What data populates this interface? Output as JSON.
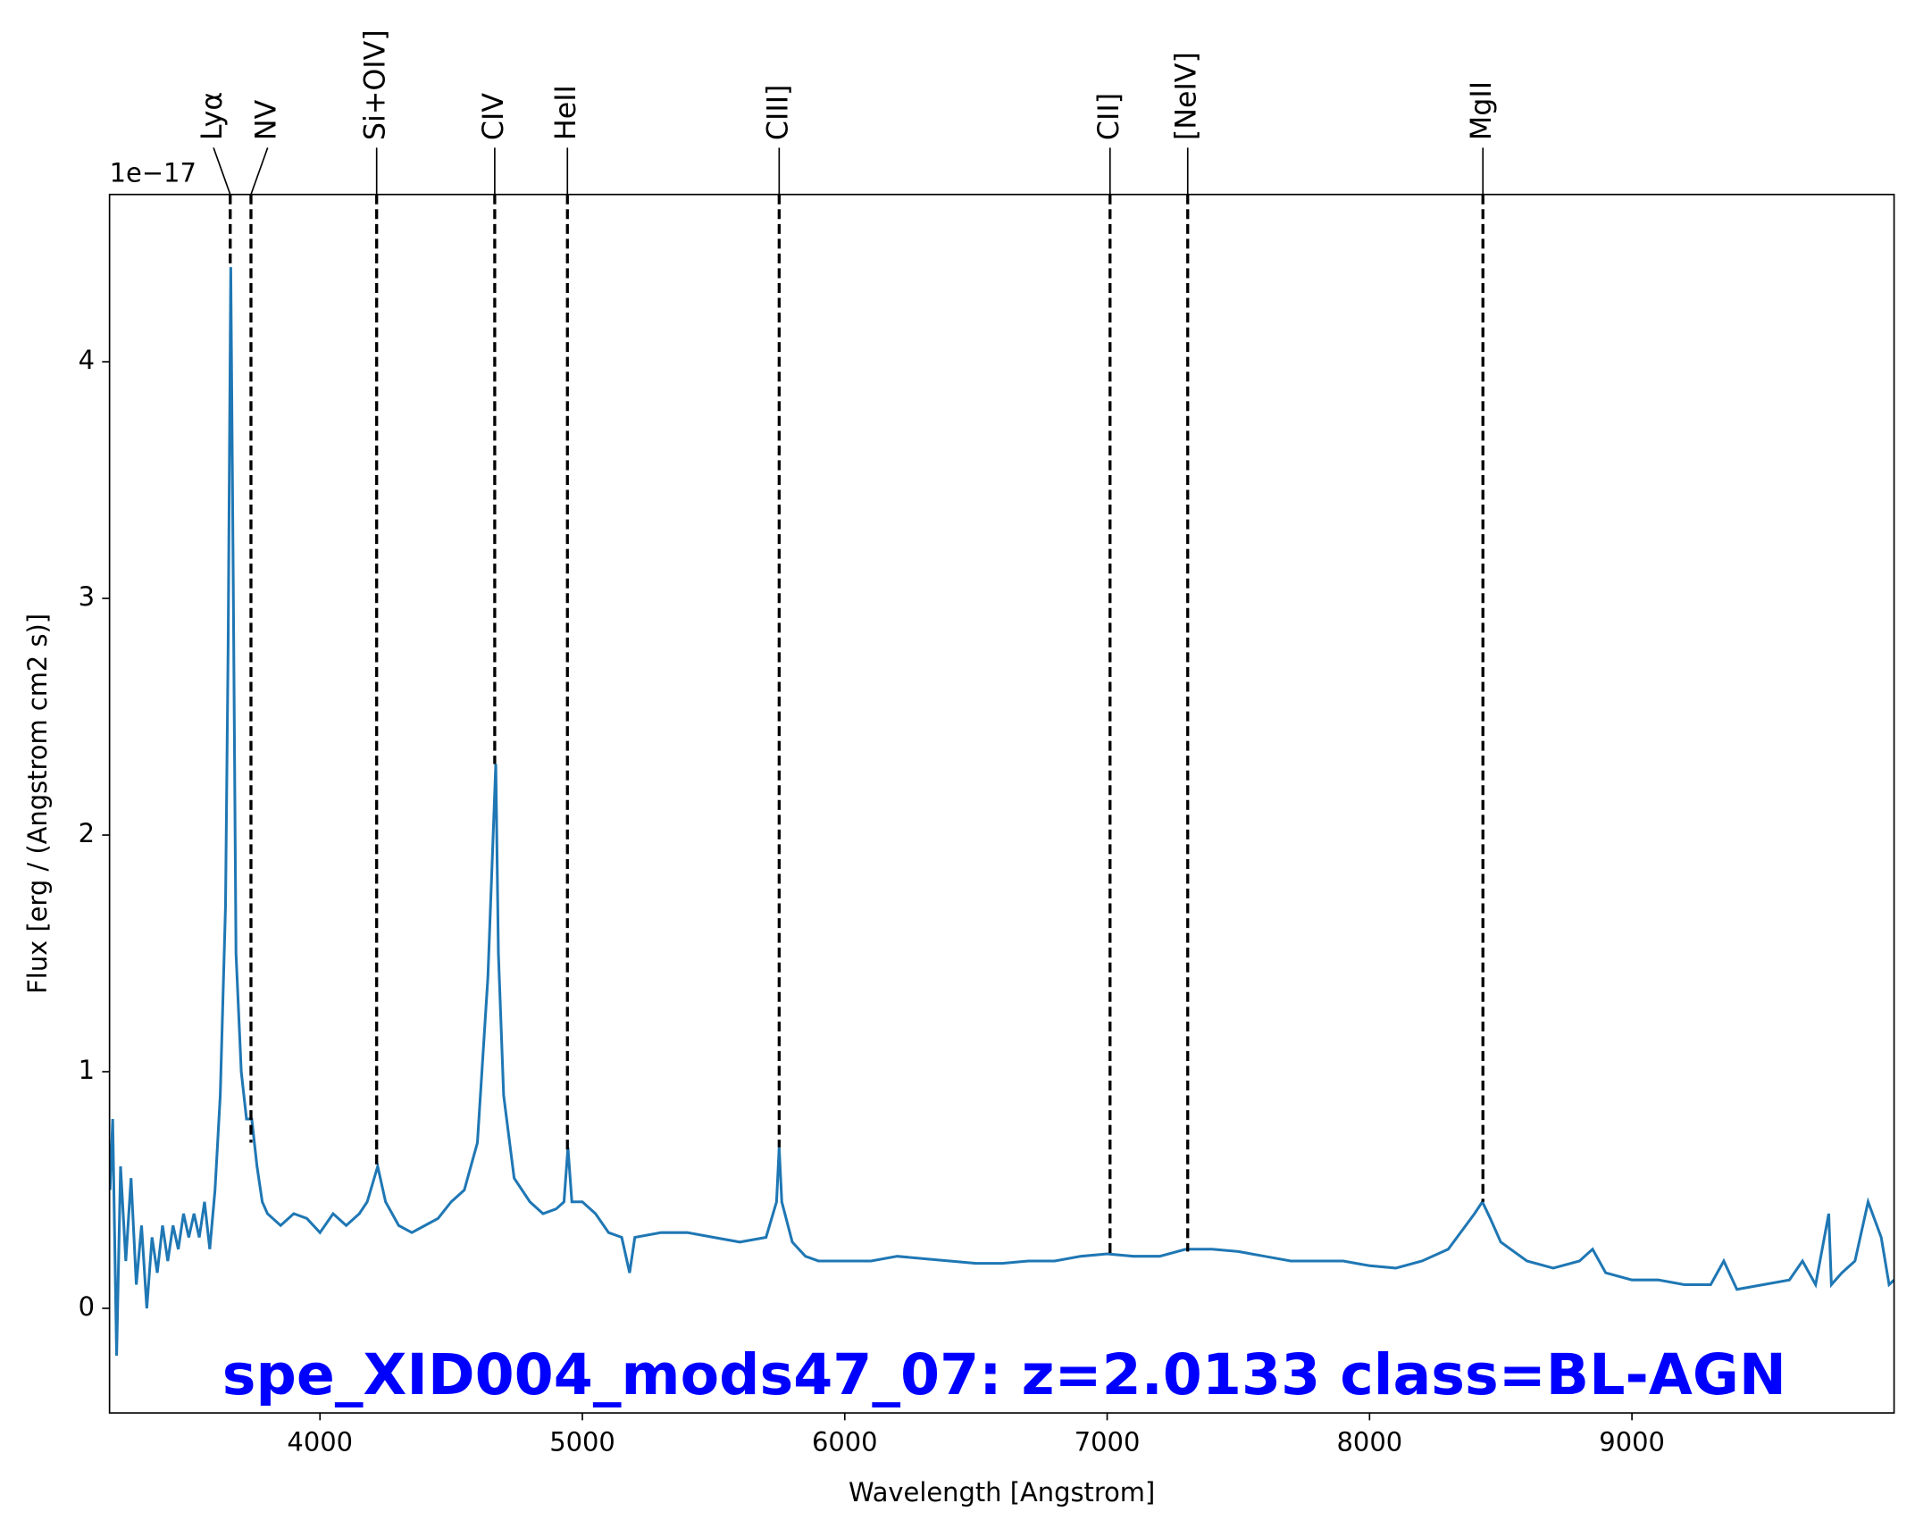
{
  "chart_data": {
    "type": "line",
    "title": "spe_XID004_mods47_07: z=2.0133 class=BL-AGN",
    "title_color": "#0000ff",
    "xlabel": "Wavelength [Angstrom]",
    "ylabel": "Flux [erg / (Angstrom cm2 s)]",
    "offset_label": "1e−17",
    "color": "#1f77b4",
    "xlim": [
      3198,
      9999
    ],
    "ylim": [
      -0.442,
      4.707
    ],
    "xticks": [
      4000,
      5000,
      6000,
      7000,
      8000,
      9000
    ],
    "yticks": [
      0,
      1,
      2,
      3,
      4
    ],
    "x": [
      3200,
      3210,
      3225,
      3240,
      3260,
      3280,
      3300,
      3320,
      3340,
      3360,
      3380,
      3400,
      3420,
      3440,
      3460,
      3480,
      3500,
      3520,
      3540,
      3560,
      3580,
      3600,
      3620,
      3640,
      3650,
      3660,
      3670,
      3680,
      3700,
      3720,
      3740,
      3760,
      3780,
      3800,
      3850,
      3900,
      3950,
      4000,
      4050,
      4100,
      4150,
      4180,
      4220,
      4250,
      4300,
      4350,
      4400,
      4450,
      4500,
      4550,
      4600,
      4640,
      4660,
      4670,
      4680,
      4700,
      4740,
      4800,
      4850,
      4900,
      4930,
      4945,
      4960,
      5000,
      5050,
      5100,
      5150,
      5180,
      5200,
      5300,
      5400,
      5500,
      5600,
      5700,
      5740,
      5750,
      5760,
      5800,
      5850,
      5900,
      6000,
      6100,
      6200,
      6300,
      6400,
      6500,
      6600,
      6700,
      6800,
      6900,
      7000,
      7100,
      7200,
      7300,
      7400,
      7500,
      7600,
      7700,
      7800,
      7900,
      8000,
      8100,
      8200,
      8300,
      8400,
      8430,
      8460,
      8500,
      8600,
      8700,
      8800,
      8850,
      8900,
      9000,
      9100,
      9200,
      9300,
      9350,
      9400,
      9500,
      9600,
      9650,
      9700,
      9750,
      9760,
      9800,
      9850,
      9900,
      9950,
      9980,
      9999
    ],
    "values": [
      0.5,
      0.8,
      -0.2,
      0.6,
      0.2,
      0.55,
      0.1,
      0.35,
      0.0,
      0.3,
      0.15,
      0.35,
      0.2,
      0.35,
      0.25,
      0.4,
      0.3,
      0.4,
      0.3,
      0.45,
      0.25,
      0.5,
      0.9,
      1.7,
      2.8,
      4.4,
      3.0,
      1.5,
      1.0,
      0.8,
      0.8,
      0.6,
      0.45,
      0.4,
      0.35,
      0.4,
      0.38,
      0.32,
      0.4,
      0.35,
      0.4,
      0.45,
      0.6,
      0.45,
      0.35,
      0.32,
      0.35,
      0.38,
      0.45,
      0.5,
      0.7,
      1.4,
      2.0,
      2.3,
      1.5,
      0.9,
      0.55,
      0.45,
      0.4,
      0.42,
      0.45,
      0.68,
      0.45,
      0.45,
      0.4,
      0.32,
      0.3,
      0.15,
      0.3,
      0.32,
      0.32,
      0.3,
      0.28,
      0.3,
      0.45,
      0.68,
      0.45,
      0.28,
      0.22,
      0.2,
      0.2,
      0.2,
      0.22,
      0.21,
      0.2,
      0.19,
      0.19,
      0.2,
      0.2,
      0.22,
      0.23,
      0.22,
      0.22,
      0.25,
      0.25,
      0.24,
      0.22,
      0.2,
      0.2,
      0.2,
      0.18,
      0.17,
      0.2,
      0.25,
      0.4,
      0.45,
      0.38,
      0.28,
      0.2,
      0.17,
      0.2,
      0.25,
      0.15,
      0.12,
      0.12,
      0.1,
      0.1,
      0.2,
      0.08,
      0.1,
      0.12,
      0.2,
      0.1,
      0.4,
      0.1,
      0.15,
      0.2,
      0.45,
      0.3,
      0.1,
      0.12
    ],
    "lines": [
      {
        "label": "Lyα",
        "wavelength": 3658,
        "flux": 4.4
      },
      {
        "label": "NV",
        "wavelength": 3737,
        "flux": 0.7
      },
      {
        "label": "Si+OIV]",
        "wavelength": 4216,
        "flux": 0.6
      },
      {
        "label": "CIV",
        "wavelength": 4666,
        "flux": 2.3
      },
      {
        "label": "HeII",
        "wavelength": 4943,
        "flux": 0.65
      },
      {
        "label": "CIII]",
        "wavelength": 5750,
        "flux": 0.68
      },
      {
        "label": "CII]",
        "wavelength": 7011,
        "flux": 0.22
      },
      {
        "label": "[NeIV]",
        "wavelength": 7307,
        "flux": 0.24
      },
      {
        "label": "MgII",
        "wavelength": 8432,
        "flux": 0.45
      }
    ]
  }
}
